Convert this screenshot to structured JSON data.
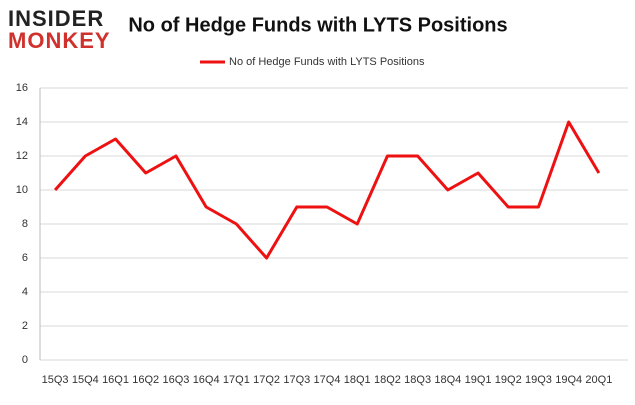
{
  "logo": {
    "line1": "INSIDER",
    "line2": "MONKEY"
  },
  "chart_data": {
    "type": "line",
    "title": "No of Hedge Funds with LYTS Positions",
    "categories": [
      "15Q3",
      "15Q4",
      "16Q1",
      "16Q2",
      "16Q3",
      "16Q4",
      "17Q1",
      "17Q2",
      "17Q3",
      "17Q4",
      "18Q1",
      "18Q2",
      "18Q3",
      "18Q4",
      "19Q1",
      "19Q2",
      "19Q3",
      "19Q4",
      "20Q1"
    ],
    "series": [
      {
        "name": "No of Hedge Funds with LYTS Positions",
        "color": "#ee1111",
        "values": [
          10,
          12,
          13,
          11,
          12,
          9,
          8,
          6,
          9,
          9,
          8,
          12,
          12,
          10,
          11,
          9,
          9,
          14,
          11
        ]
      }
    ],
    "ylim": [
      0,
      16
    ],
    "yticks": [
      0,
      2,
      4,
      6,
      8,
      10,
      12,
      14,
      16
    ],
    "grid": true,
    "legend": "top"
  }
}
